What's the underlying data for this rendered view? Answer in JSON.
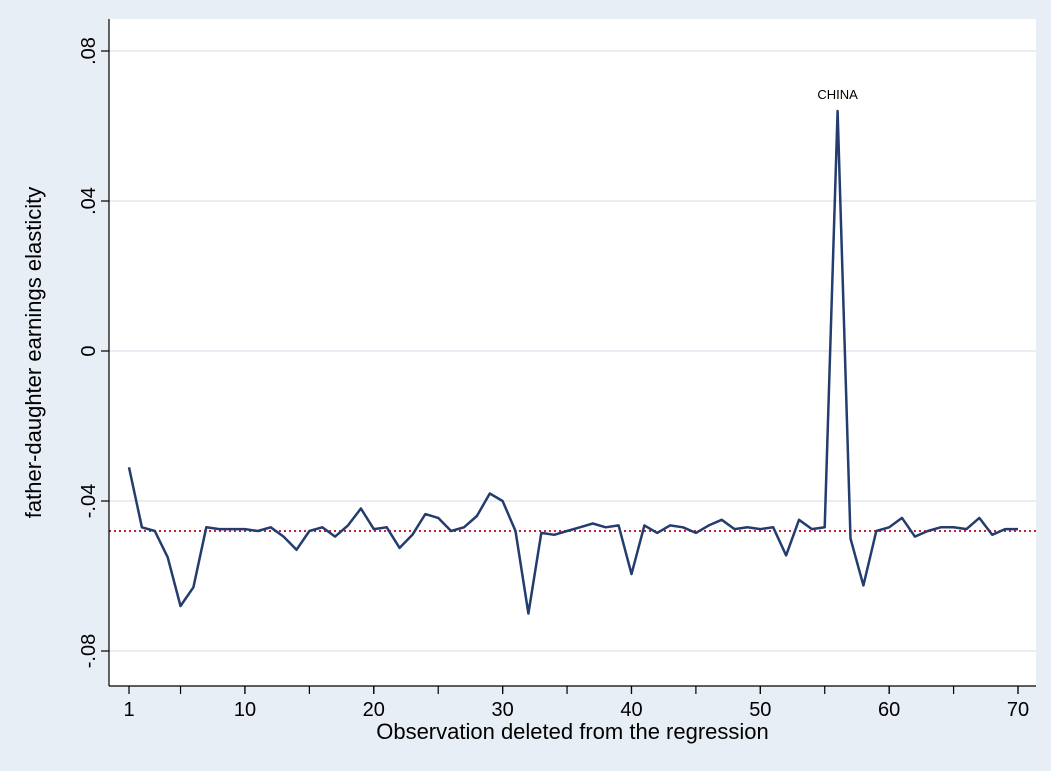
{
  "chart_data": {
    "type": "line",
    "xlabel": "Observation deleted from the regression",
    "ylabel": "father-daughter earnings elasticity",
    "xlim": [
      1,
      70
    ],
    "ylim": [
      -0.08,
      0.08
    ],
    "x_ticks": [
      1,
      10,
      20,
      30,
      40,
      50,
      60,
      70
    ],
    "x_tick_labels": [
      "1",
      "10",
      "20",
      "30",
      "40",
      "50",
      "60",
      "70"
    ],
    "y_ticks": [
      -0.08,
      -0.04,
      0,
      0.04,
      0.08
    ],
    "y_tick_labels": [
      "-.08",
      "-.04",
      "0",
      ".04",
      ".08"
    ],
    "grid": true,
    "reference_line": {
      "y": -0.048,
      "style": "dotted"
    },
    "annotations": [
      {
        "text": "CHINA",
        "x": 56,
        "y": 0.064
      }
    ],
    "series": [
      {
        "values": [
          -0.031,
          -0.047,
          -0.048,
          -0.055,
          -0.068,
          -0.063,
          -0.047,
          -0.0475,
          -0.0475,
          -0.0475,
          -0.048,
          -0.047,
          -0.0495,
          -0.053,
          -0.048,
          -0.047,
          -0.0495,
          -0.0465,
          -0.042,
          -0.0475,
          -0.047,
          -0.0525,
          -0.049,
          -0.0435,
          -0.0445,
          -0.048,
          -0.047,
          -0.044,
          -0.038,
          -0.04,
          -0.048,
          -0.07,
          -0.0485,
          -0.049,
          -0.048,
          -0.047,
          -0.046,
          -0.047,
          -0.0465,
          -0.0595,
          -0.0465,
          -0.0485,
          -0.0465,
          -0.047,
          -0.0485,
          -0.0465,
          -0.045,
          -0.0475,
          -0.047,
          -0.0475,
          -0.047,
          -0.0545,
          -0.045,
          -0.0475,
          -0.047,
          0.064,
          -0.05,
          -0.0625,
          -0.048,
          -0.047,
          -0.0445,
          -0.0495,
          -0.048,
          -0.047,
          -0.047,
          -0.0475,
          -0.0445,
          -0.049,
          -0.0475,
          -0.0475
        ]
      }
    ]
  },
  "colors": {
    "background": "#e8eef6",
    "plot_area": "#ffffff",
    "grid": "#e1e7ef",
    "line": "#243c6e",
    "reference": "#c0233a"
  }
}
